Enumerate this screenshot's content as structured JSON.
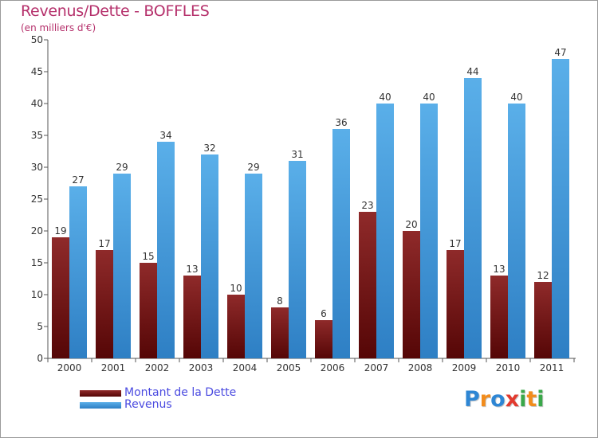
{
  "chart_data": {
    "type": "bar",
    "title": "Revenus/Dette - BOFFLES",
    "subtitle": "(en milliers d'€)",
    "categories": [
      "2000",
      "2001",
      "2002",
      "2003",
      "2004",
      "2005",
      "2006",
      "2007",
      "2008",
      "2009",
      "2010",
      "2011"
    ],
    "series": [
      {
        "name": "Montant de la Dette",
        "color": "#7a1818",
        "values": [
          19,
          17,
          15,
          13,
          10,
          8,
          6,
          23,
          20,
          17,
          13,
          12
        ]
      },
      {
        "name": "Revenus",
        "color": "#4a9de0",
        "values": [
          27,
          29,
          34,
          32,
          29,
          31,
          36,
          40,
          40,
          44,
          40,
          47
        ]
      }
    ],
    "ylim": [
      0,
      50
    ],
    "yticks": [
      0,
      5,
      10,
      15,
      20,
      25,
      30,
      35,
      40,
      45,
      50
    ],
    "grid": false,
    "legend": "bottom-left"
  },
  "logo": {
    "letters": [
      {
        "char": "P",
        "color": "#2e86d4"
      },
      {
        "char": "r",
        "color": "#f28c1c"
      },
      {
        "char": "o",
        "color": "#2e86d4"
      },
      {
        "char": "x",
        "color": "#e23a2e"
      },
      {
        "char": "i",
        "color": "#3aa84a"
      },
      {
        "char": "t",
        "color": "#f28c1c"
      },
      {
        "char": "i",
        "color": "#3aa84a"
      }
    ]
  }
}
